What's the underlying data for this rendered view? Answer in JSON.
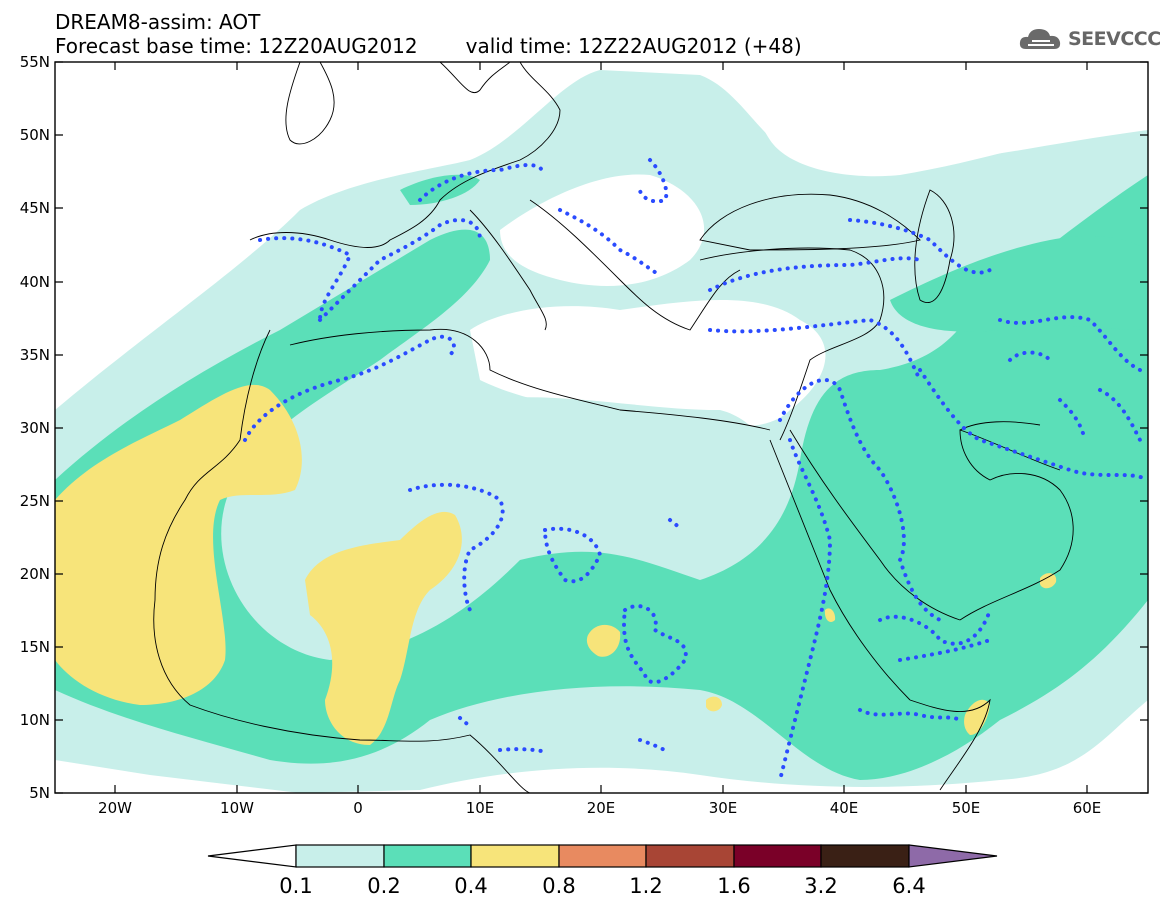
{
  "header": {
    "title_line1": "DREAM8-assim: AOT",
    "base_time": "Forecast base time: 12Z20AUG2012",
    "valid_time": "valid time: 12Z22AUG2012 (+48)"
  },
  "logo": {
    "text": "SEEVCCC",
    "icon": "cloud-icon"
  },
  "map": {
    "projection": "lat-lon",
    "lon_range": [
      -25,
      65
    ],
    "lat_range": [
      5,
      55
    ],
    "lat_ticks": [
      "55N",
      "50N",
      "45N",
      "40N",
      "35N",
      "30N",
      "25N",
      "20N",
      "15N",
      "10N",
      "5N"
    ],
    "lon_ticks": [
      "20W",
      "10W",
      "0",
      "10E",
      "20E",
      "30E",
      "40E",
      "50E",
      "60E"
    ],
    "contour_style": "blue dotted line",
    "background": "#ffffff"
  },
  "colorbar": {
    "labels": [
      "0.1",
      "0.2",
      "0.4",
      "0.8",
      "1.2",
      "1.6",
      "3.2",
      "6.4"
    ],
    "colors": [
      "#ffffff",
      "#c8efea",
      "#5bdfb8",
      "#f7e47a",
      "#e88a60",
      "#a84535",
      "#7a0028",
      "#3a2015",
      "#8e6aa8"
    ]
  },
  "colors": {
    "aot_0_1_0_2": "#c8efea",
    "aot_0_2_0_4": "#5bdfb8",
    "aot_0_4_0_8": "#f7e47a",
    "contour": "#2a4bff"
  }
}
